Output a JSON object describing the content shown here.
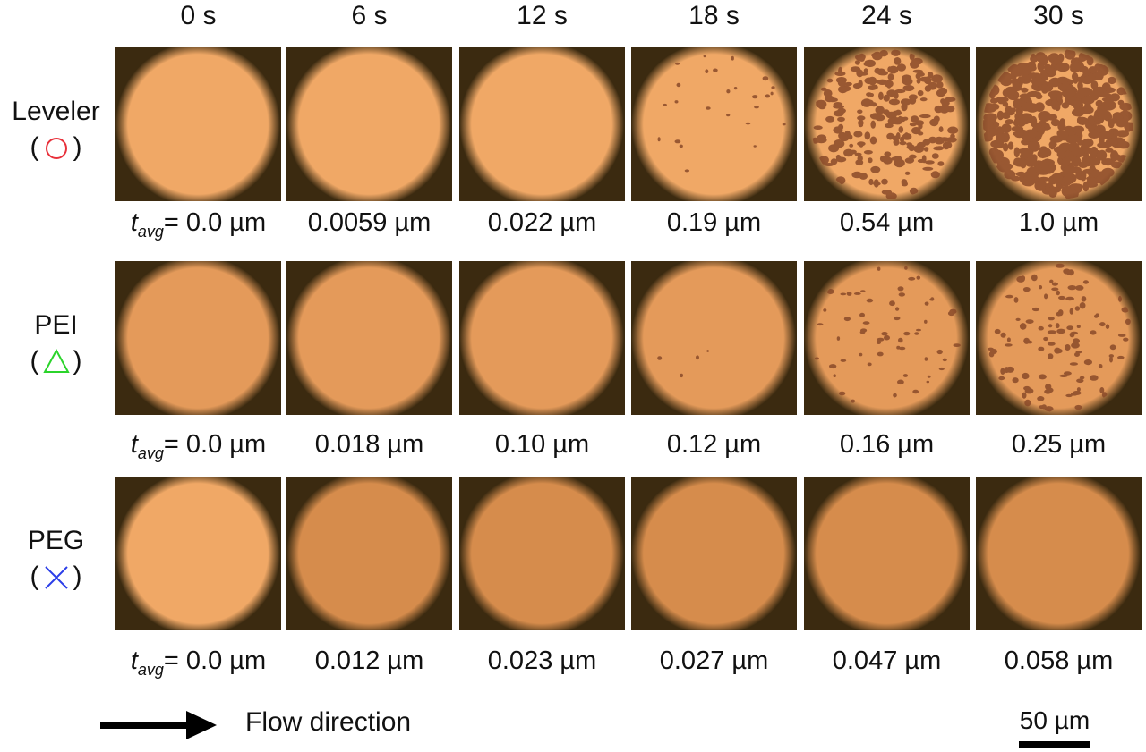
{
  "times": [
    "0 s",
    "6 s",
    "12 s",
    "18 s",
    "24 s",
    "30 s"
  ],
  "rows": [
    {
      "label": "Leveler",
      "symbol": "circle-icon",
      "symbol_color": "#e8303a",
      "tavg_prefix": "t",
      "tavg_sub": "avg",
      "thickness": [
        "= 0.0 µm",
        "0.0059 µm",
        "0.022 µm",
        "0.19 µm",
        "0.54 µm",
        "1.0 µm"
      ]
    },
    {
      "label": "PEI",
      "symbol": "triangle-icon",
      "symbol_color": "#2bd42b",
      "tavg_prefix": "t",
      "tavg_sub": "avg",
      "thickness": [
        "= 0.0 µm",
        "0.018 µm",
        "0.10 µm",
        "0.12 µm",
        "0.16 µm",
        "0.25 µm"
      ]
    },
    {
      "label": "PEG",
      "symbol": "cross-icon",
      "symbol_color": "#2b3ee8",
      "tavg_prefix": "t",
      "tavg_sub": "avg",
      "thickness": [
        "= 0.0 µm",
        "0.012 µm",
        "0.023 µm",
        "0.027 µm",
        "0.047 µm",
        "0.058 µm"
      ]
    }
  ],
  "flow_label": "Flow direction",
  "scale_label": "50 µm",
  "colors": {
    "background": "#3b2a10",
    "copper": "#f0a866",
    "deposit": "#8a4a2a"
  }
}
